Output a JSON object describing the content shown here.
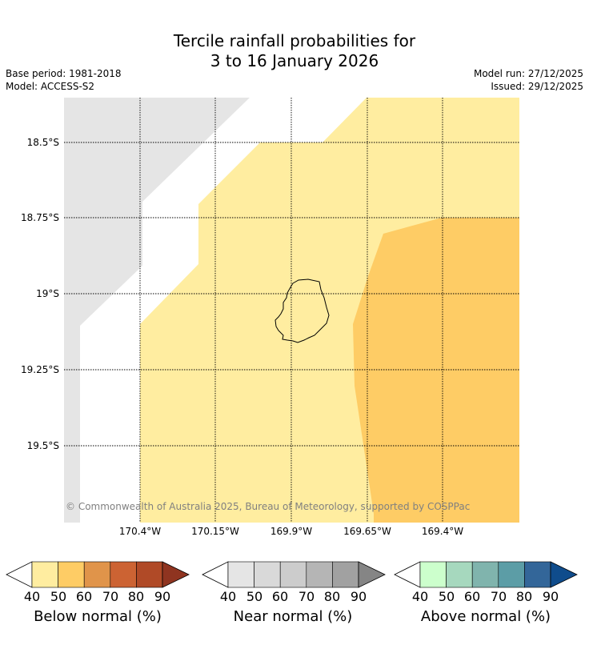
{
  "title": {
    "line1": "Tercile rainfall probabilities for",
    "line2": "3 to 16 January 2026"
  },
  "meta": {
    "base_period": "Base period: 1981-2018",
    "model": "Model: ACCESS-S2",
    "model_run": "Model run: 27/12/2025",
    "issued": "Issued: 29/12/2025"
  },
  "map": {
    "latitude_labels": [
      "18.5°S",
      "18.75°S",
      "19°S",
      "19.25°S",
      "19.5°S"
    ],
    "longitude_labels": [
      "170.4°W",
      "170.15°W",
      "169.9°W",
      "169.65°W",
      "169.4°W"
    ],
    "copyright": "© Commonwealth of Australia 2025, Bureau of Meteorology, supported by COSPPac",
    "colors": {
      "no_signal": "#ffffff",
      "near_normal_40_50": "#e5e5e5",
      "below_40_50": "#ffeda0",
      "below_50_60": "#fed16b"
    }
  },
  "colorbars": [
    {
      "label": "Below normal (%)",
      "ticks": [
        "40",
        "50",
        "60",
        "70",
        "80",
        "90"
      ],
      "colors": [
        "#ffeda0",
        "#fecc65",
        "#e0944a",
        "#cc6333",
        "#b04a27",
        "#8f3420"
      ]
    },
    {
      "label": "Near normal (%)",
      "ticks": [
        "40",
        "50",
        "60",
        "70",
        "80",
        "90"
      ],
      "colors": [
        "#e5e5e5",
        "#d9d9d9",
        "#cccccc",
        "#b5b5b5",
        "#a1a1a1",
        "#858585"
      ]
    },
    {
      "label": "Above normal (%)",
      "ticks": [
        "40",
        "50",
        "60",
        "70",
        "80",
        "90"
      ],
      "colors": [
        "#ccffcc",
        "#a6d8be",
        "#80b4ad",
        "#5c9da6",
        "#336699",
        "#0f4c8c"
      ]
    }
  ]
}
